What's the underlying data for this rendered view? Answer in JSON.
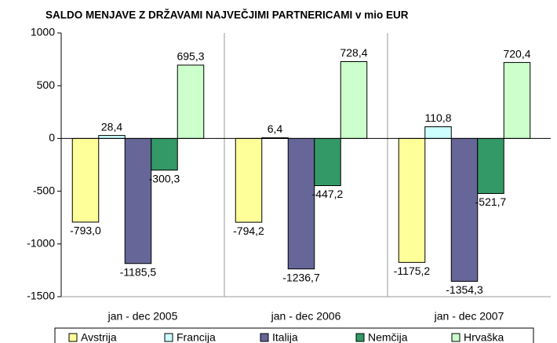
{
  "chart_data": {
    "type": "bar",
    "title": "SALDO MENJAVE Z DRŽAVAMI NAJVEČJIMI PARTNERICAMI v mio EUR",
    "categories": [
      "jan - dec 2005",
      "jan - dec 2006",
      "jan - dec 2007"
    ],
    "series": [
      {
        "name": "Avstrija",
        "color": "#ffff99",
        "values": [
          -793.0,
          -794.2,
          -1175.2
        ],
        "value_labels": [
          "-793,0",
          "-794,2",
          "-1175,2"
        ]
      },
      {
        "name": "Francija",
        "color": "#ccffff",
        "values": [
          28.4,
          6.4,
          110.8
        ],
        "value_labels": [
          "28,4",
          "6,4",
          "110,8"
        ]
      },
      {
        "name": "Italija",
        "color": "#666699",
        "values": [
          -1185.5,
          -1236.7,
          -1354.3
        ],
        "value_labels": [
          "-1185,5",
          "-1236,7",
          "-1354,3"
        ]
      },
      {
        "name": "Nemčija",
        "color": "#339966",
        "values": [
          -300.3,
          -447.2,
          -521.7
        ],
        "value_labels": [
          "-300,3",
          "-447,2",
          "-521,7"
        ]
      },
      {
        "name": "Hrvaška",
        "color": "#ccffcc",
        "values": [
          695.3,
          728.4,
          720.4
        ],
        "value_labels": [
          "695,3",
          "728,4",
          "720,4"
        ]
      }
    ],
    "ylim": [
      -1500,
      1000
    ],
    "yticks": [
      -1500,
      -1000,
      -500,
      0,
      500,
      1000
    ],
    "grid": false,
    "legend": "bottom"
  }
}
